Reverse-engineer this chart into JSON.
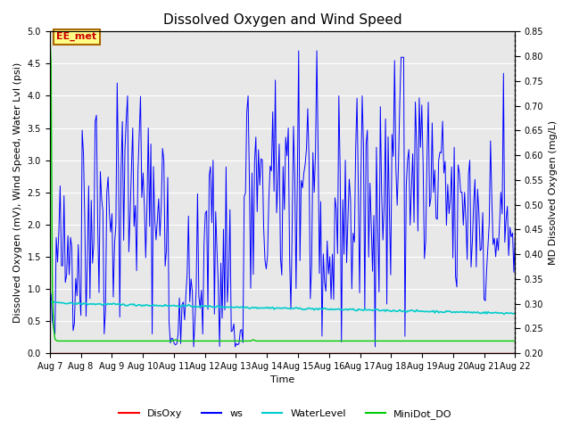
{
  "title": "Dissolved Oxygen and Wind Speed",
  "ylabel_left": "Dissolved Oxygen (mV), Wind Speed, Water Lvl (psi)",
  "ylabel_right": "MD Dissolved Oxygen (mg/L)",
  "xlabel": "Time",
  "annotation_text": "EE_met",
  "ylim_left": [
    0.0,
    5.0
  ],
  "ylim_right": [
    0.2,
    0.85
  ],
  "yticks_left": [
    0.0,
    0.5,
    1.0,
    1.5,
    2.0,
    2.5,
    3.0,
    3.5,
    4.0,
    4.5,
    5.0
  ],
  "yticks_right": [
    0.2,
    0.25,
    0.3,
    0.35,
    0.4,
    0.45,
    0.5,
    0.55,
    0.6,
    0.65,
    0.7,
    0.75,
    0.8,
    0.85
  ],
  "colors": {
    "DisOxy": "#ff0000",
    "ws": "#0000ff",
    "WaterLevel": "#00cccc",
    "MiniDot_DO": "#00cc00"
  },
  "bg_color": "#e8e8e8",
  "grid_color": "#ffffff",
  "title_fontsize": 11,
  "label_fontsize": 8,
  "tick_fontsize": 7
}
